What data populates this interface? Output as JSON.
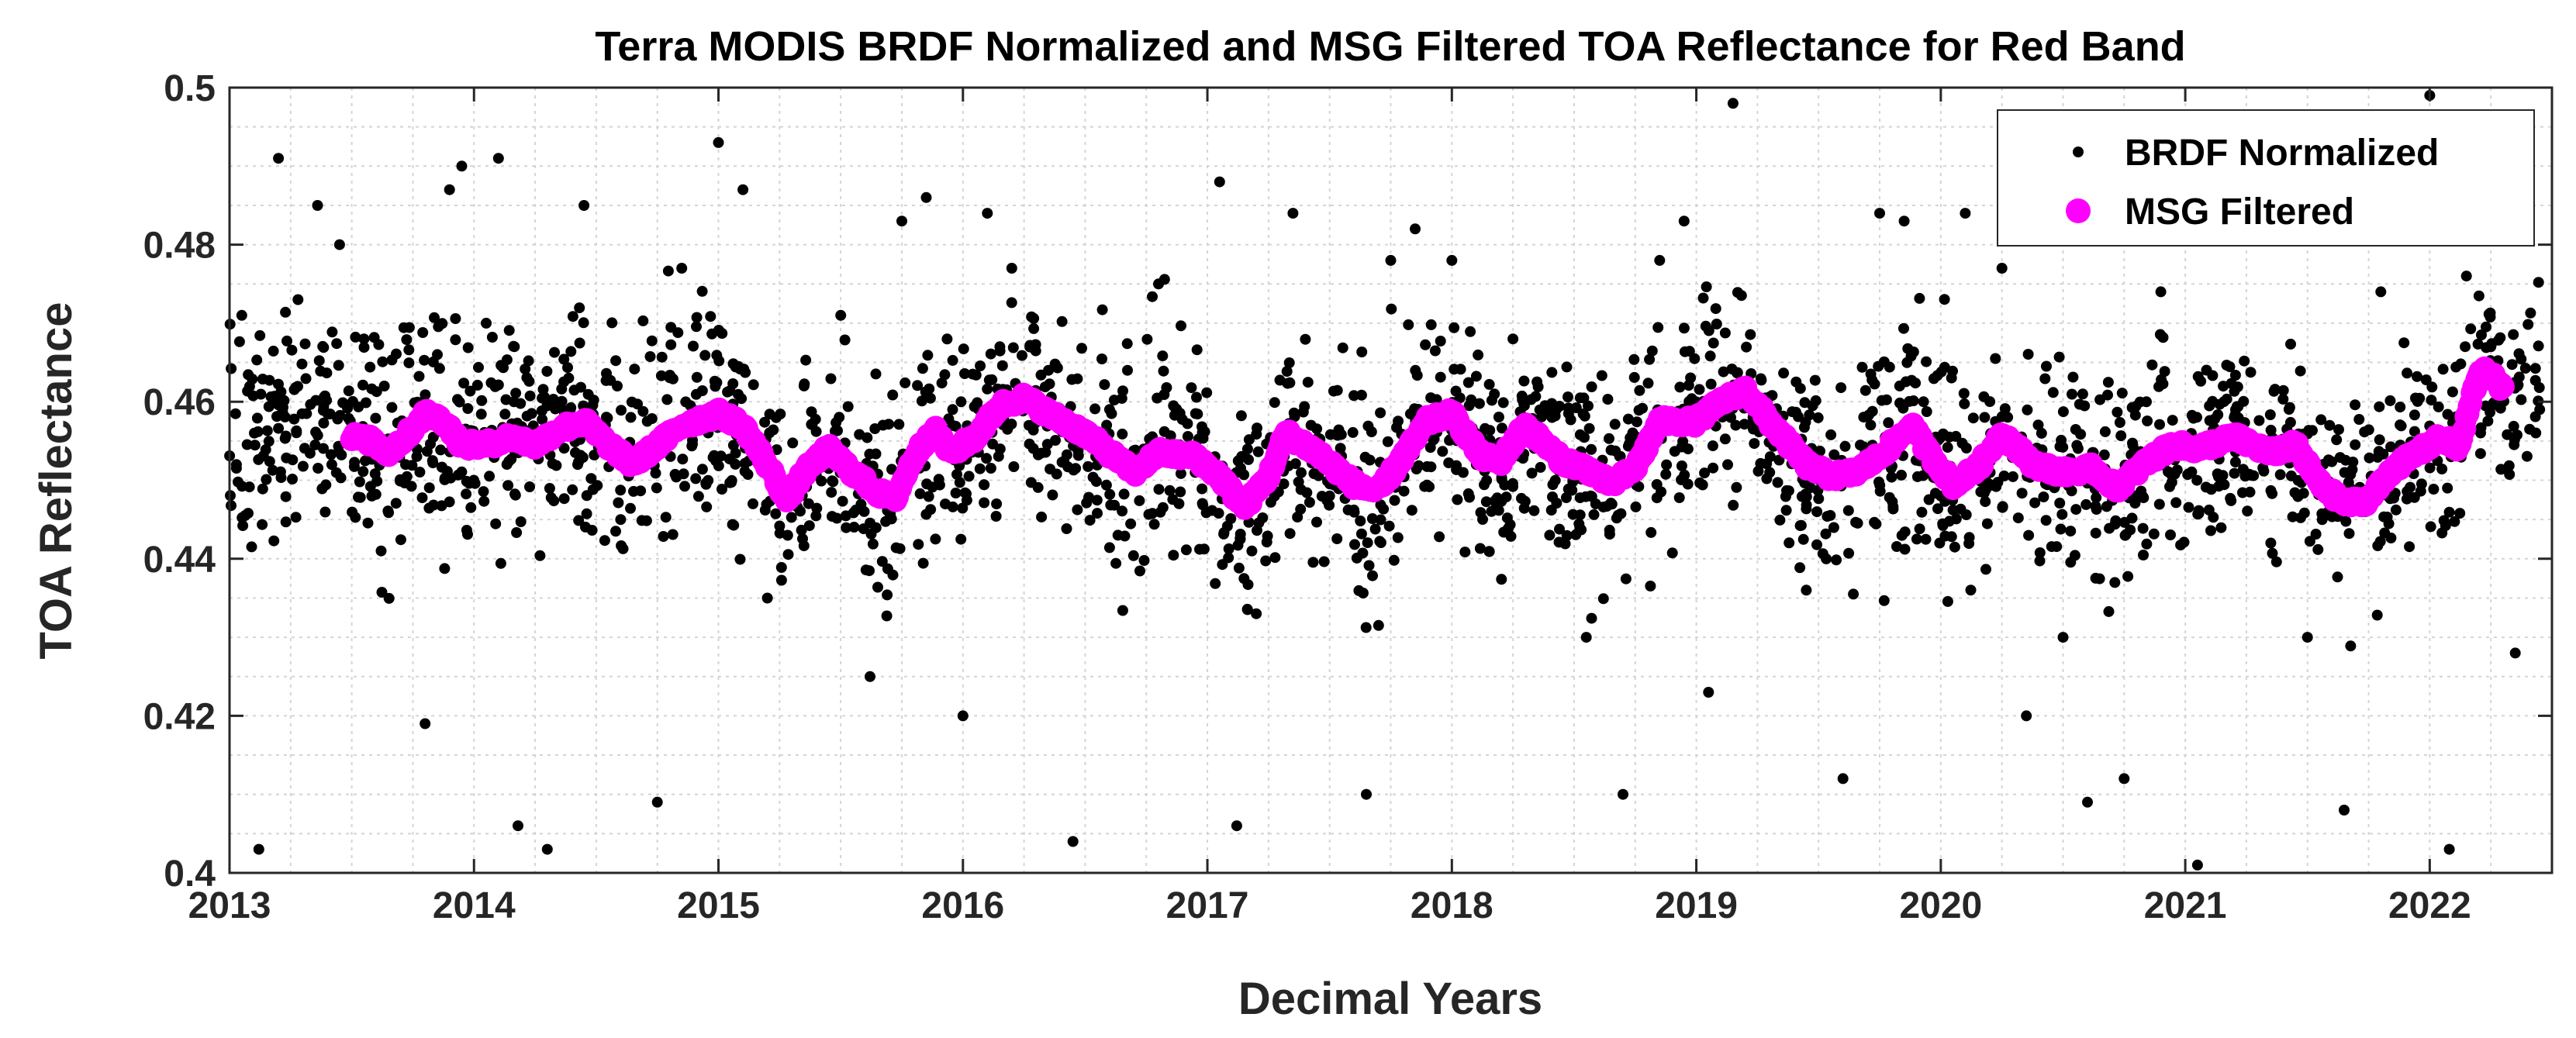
{
  "chart_data": {
    "type": "scatter",
    "title": "Terra MODIS BRDF Normalized and MSG Filtered TOA Reflectance for Red Band",
    "xlabel": "Decimal Years",
    "ylabel": "TOA Reflectance",
    "xlim": [
      2013,
      2022.5
    ],
    "ylim": [
      0.4,
      0.5
    ],
    "xticks": [
      2013,
      2014,
      2015,
      2016,
      2017,
      2018,
      2019,
      2020,
      2021,
      2022
    ],
    "yticks": [
      0.4,
      0.42,
      0.44,
      0.46,
      0.48,
      0.5
    ],
    "xtick_labels": [
      "2013",
      "2014",
      "2015",
      "2016",
      "2017",
      "2018",
      "2019",
      "2020",
      "2021",
      "2022"
    ],
    "ytick_labels": [
      "0.4",
      "0.42",
      "0.44",
      "0.46",
      "0.48",
      "0.5"
    ],
    "grid": true,
    "legend_position": "top-right",
    "series": [
      {
        "name": "BRDF Normalized",
        "color": "#000000",
        "marker": "dot",
        "values": [
          [
            2013.05,
            0.471
          ],
          [
            2013.12,
            0.403
          ],
          [
            2013.2,
            0.491
          ],
          [
            2013.28,
            0.473
          ],
          [
            2013.36,
            0.485
          ],
          [
            2013.45,
            0.48
          ],
          [
            2013.55,
            0.468
          ],
          [
            2013.62,
            0.441
          ],
          [
            2013.72,
            0.452
          ],
          [
            2013.8,
            0.419
          ],
          [
            2013.85,
            0.466
          ],
          [
            2013.9,
            0.487
          ],
          [
            2013.95,
            0.49
          ],
          [
            2014.05,
            0.47
          ],
          [
            2014.1,
            0.491
          ],
          [
            2014.18,
            0.406
          ],
          [
            2014.3,
            0.403
          ],
          [
            2014.45,
            0.485
          ],
          [
            2014.6,
            0.445
          ],
          [
            2014.75,
            0.409
          ],
          [
            2014.85,
            0.477
          ],
          [
            2015.0,
            0.493
          ],
          [
            2015.1,
            0.487
          ],
          [
            2015.2,
            0.435
          ],
          [
            2015.35,
            0.462
          ],
          [
            2015.5,
            0.471
          ],
          [
            2015.62,
            0.425
          ],
          [
            2015.75,
            0.483
          ],
          [
            2015.85,
            0.486
          ],
          [
            2016.0,
            0.42
          ],
          [
            2016.1,
            0.484
          ],
          [
            2016.2,
            0.477
          ],
          [
            2016.35,
            0.464
          ],
          [
            2016.45,
            0.404
          ],
          [
            2016.6,
            0.459
          ],
          [
            2016.8,
            0.475
          ],
          [
            2016.95,
            0.451
          ],
          [
            2017.05,
            0.488
          ],
          [
            2017.12,
            0.406
          ],
          [
            2017.2,
            0.433
          ],
          [
            2017.35,
            0.484
          ],
          [
            2017.5,
            0.448
          ],
          [
            2017.65,
            0.41
          ],
          [
            2017.75,
            0.478
          ],
          [
            2017.85,
            0.482
          ],
          [
            2018.0,
            0.478
          ],
          [
            2018.1,
            0.452
          ],
          [
            2018.25,
            0.468
          ],
          [
            2018.4,
            0.443
          ],
          [
            2018.55,
            0.43
          ],
          [
            2018.7,
            0.41
          ],
          [
            2018.85,
            0.478
          ],
          [
            2018.95,
            0.483
          ],
          [
            2019.05,
            0.423
          ],
          [
            2019.15,
            0.498
          ],
          [
            2019.3,
            0.451
          ],
          [
            2019.45,
            0.436
          ],
          [
            2019.6,
            0.412
          ],
          [
            2019.75,
            0.484
          ],
          [
            2019.85,
            0.483
          ],
          [
            2020.0,
            0.448
          ],
          [
            2020.1,
            0.484
          ],
          [
            2020.25,
            0.477
          ],
          [
            2020.35,
            0.42
          ],
          [
            2020.5,
            0.43
          ],
          [
            2020.6,
            0.409
          ],
          [
            2020.75,
            0.412
          ],
          [
            2020.9,
            0.474
          ],
          [
            2021.05,
            0.401
          ],
          [
            2021.2,
            0.458
          ],
          [
            2021.35,
            0.442
          ],
          [
            2021.5,
            0.43
          ],
          [
            2021.65,
            0.408
          ],
          [
            2021.8,
            0.474
          ],
          [
            2022.0,
            0.499
          ],
          [
            2022.08,
            0.403
          ],
          [
            2022.15,
            0.476
          ],
          [
            2022.25,
            0.467
          ],
          [
            2022.35,
            0.428
          ],
          [
            2022.45,
            0.459
          ]
        ]
      },
      {
        "name": "MSG Filtered",
        "color": "#ff00ff",
        "marker": "large-dot",
        "values": [
          [
            2013.5,
            0.4555
          ],
          [
            2013.58,
            0.455
          ],
          [
            2013.65,
            0.4535
          ],
          [
            2013.72,
            0.4555
          ],
          [
            2013.8,
            0.4585
          ],
          [
            2013.88,
            0.4575
          ],
          [
            2013.95,
            0.4545
          ],
          [
            2014.05,
            0.4545
          ],
          [
            2014.15,
            0.4555
          ],
          [
            2014.25,
            0.4545
          ],
          [
            2014.35,
            0.4565
          ],
          [
            2014.45,
            0.4575
          ],
          [
            2014.55,
            0.4545
          ],
          [
            2014.65,
            0.452
          ],
          [
            2014.75,
            0.4545
          ],
          [
            2014.85,
            0.457
          ],
          [
            2015.0,
            0.4585
          ],
          [
            2015.1,
            0.457
          ],
          [
            2015.2,
            0.452
          ],
          [
            2015.28,
            0.4475
          ],
          [
            2015.35,
            0.451
          ],
          [
            2015.45,
            0.454
          ],
          [
            2015.55,
            0.451
          ],
          [
            2015.65,
            0.4485
          ],
          [
            2015.72,
            0.4475
          ],
          [
            2015.8,
            0.453
          ],
          [
            2015.88,
            0.4565
          ],
          [
            2015.95,
            0.4535
          ],
          [
            2016.05,
            0.4555
          ],
          [
            2016.15,
            0.4595
          ],
          [
            2016.25,
            0.4605
          ],
          [
            2016.35,
            0.4585
          ],
          [
            2016.5,
            0.456
          ],
          [
            2016.6,
            0.4535
          ],
          [
            2016.7,
            0.451
          ],
          [
            2016.8,
            0.4535
          ],
          [
            2016.95,
            0.453
          ],
          [
            2017.05,
            0.4505
          ],
          [
            2017.15,
            0.4465
          ],
          [
            2017.25,
            0.4505
          ],
          [
            2017.32,
            0.456
          ],
          [
            2017.45,
            0.4535
          ],
          [
            2017.6,
            0.4495
          ],
          [
            2017.7,
            0.4485
          ],
          [
            2017.8,
            0.453
          ],
          [
            2017.9,
            0.4575
          ],
          [
            2018.0,
            0.4585
          ],
          [
            2018.12,
            0.453
          ],
          [
            2018.2,
            0.4525
          ],
          [
            2018.3,
            0.457
          ],
          [
            2018.45,
            0.4525
          ],
          [
            2018.55,
            0.4515
          ],
          [
            2018.65,
            0.4495
          ],
          [
            2018.75,
            0.4515
          ],
          [
            2018.85,
            0.4575
          ],
          [
            2019.0,
            0.4575
          ],
          [
            2019.1,
            0.46
          ],
          [
            2019.2,
            0.4615
          ],
          [
            2019.3,
            0.4575
          ],
          [
            2019.45,
            0.452
          ],
          [
            2019.55,
            0.4505
          ],
          [
            2019.65,
            0.451
          ],
          [
            2019.75,
            0.453
          ],
          [
            2019.88,
            0.457
          ],
          [
            2019.95,
            0.4535
          ],
          [
            2020.05,
            0.4495
          ],
          [
            2020.15,
            0.4515
          ],
          [
            2020.25,
            0.456
          ],
          [
            2020.38,
            0.452
          ],
          [
            2020.5,
            0.451
          ],
          [
            2020.62,
            0.4515
          ],
          [
            2020.72,
            0.449
          ],
          [
            2020.85,
            0.4525
          ],
          [
            2020.95,
            0.4545
          ],
          [
            2021.05,
            0.454
          ],
          [
            2021.2,
            0.4555
          ],
          [
            2021.35,
            0.4535
          ],
          [
            2021.45,
            0.4545
          ],
          [
            2021.55,
            0.4495
          ],
          [
            2021.65,
            0.447
          ],
          [
            2021.75,
            0.4475
          ],
          [
            2021.85,
            0.4515
          ],
          [
            2021.95,
            0.4535
          ],
          [
            2022.05,
            0.4555
          ],
          [
            2022.12,
            0.454
          ],
          [
            2022.18,
            0.4615
          ],
          [
            2022.22,
            0.4645
          ],
          [
            2022.3,
            0.4615
          ]
        ]
      }
    ]
  }
}
